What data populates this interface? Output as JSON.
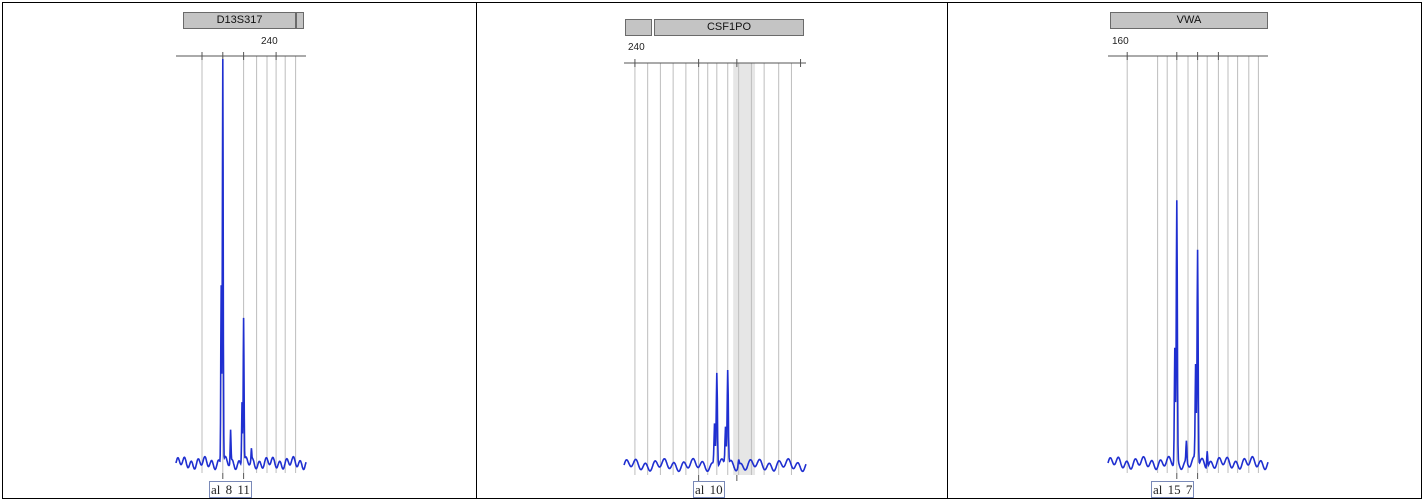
{
  "chart_data": [
    {
      "type": "line",
      "marker": "D13S317",
      "x_tick_label": "240",
      "allele_labels": [
        "al",
        "8",
        "11"
      ],
      "grid": true,
      "series": [
        {
          "color": "#1f2fd0",
          "peaks": [
            {
              "x": 0.36,
              "height": 1.0
            },
            {
              "x": 0.52,
              "height": 0.36
            }
          ]
        }
      ]
    },
    {
      "type": "line",
      "marker": "CSF1PO",
      "x_tick_label": "240",
      "allele_labels": [
        "al",
        "10"
      ],
      "grid": true,
      "series": [
        {
          "color": "#1f2fd0",
          "peaks": [
            {
              "x": 0.51,
              "height": 0.24
            },
            {
              "x": 0.57,
              "height": 0.22
            }
          ]
        }
      ]
    },
    {
      "type": "line",
      "marker": "VWA",
      "x_tick_label": "160",
      "allele_labels": [
        "al",
        "15",
        "7"
      ],
      "grid": true,
      "series": [
        {
          "color": "#1f2fd0",
          "peaks": [
            {
              "x": 0.43,
              "height": 0.64
            },
            {
              "x": 0.56,
              "height": 0.53
            }
          ]
        }
      ]
    }
  ]
}
